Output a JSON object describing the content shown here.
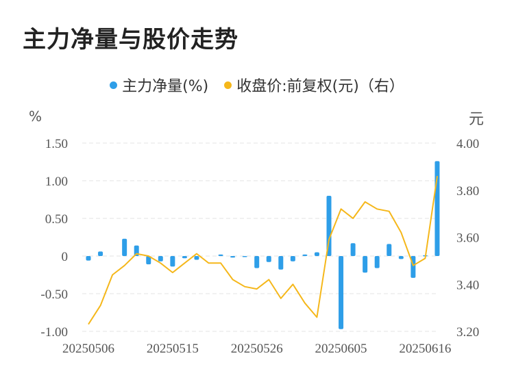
{
  "title": "主力净量与股价走势",
  "legend": [
    {
      "label": "主力净量(%)",
      "color": "#2e9ee8"
    },
    {
      "label": "收盘价:前复权(元)（右）",
      "color": "#f5b71a"
    }
  ],
  "unit_left": "%",
  "unit_right": "元",
  "chart_data": {
    "type": "bar",
    "title": "主力净量与股价走势",
    "y_left_ticks": [
      "1.50",
      "1.00",
      "0.50",
      "0",
      "-0.50",
      "-1.00"
    ],
    "y_left_lim": [
      -1.0,
      1.5
    ],
    "y_right_ticks": [
      "4.00",
      "3.80",
      "3.60",
      "3.40",
      "3.20"
    ],
    "y_right_lim": [
      3.2,
      4.0
    ],
    "x_tick_labels": [
      "20250506",
      "20250515",
      "20250526",
      "20250605",
      "20250616"
    ],
    "x_tick_index": [
      0,
      7,
      14,
      21,
      28
    ],
    "grid": true,
    "series": [
      {
        "name": "主力净量(%)",
        "type": "bar",
        "axis": "left",
        "color": "#2e9ee8",
        "values": [
          -0.06,
          0.06,
          0.0,
          0.23,
          0.14,
          -0.11,
          -0.07,
          -0.14,
          -0.03,
          -0.05,
          0.0,
          0.02,
          -0.02,
          -0.01,
          -0.16,
          -0.08,
          -0.18,
          -0.07,
          0.02,
          0.05,
          0.8,
          -0.97,
          0.17,
          -0.22,
          -0.16,
          0.16,
          -0.04,
          -0.29,
          0.01,
          1.26
        ]
      },
      {
        "name": "收盘价:前复权(元)（右）",
        "type": "line",
        "axis": "right",
        "color": "#f5b71a",
        "values": [
          3.23,
          3.31,
          3.44,
          3.48,
          3.53,
          3.52,
          3.49,
          3.45,
          3.49,
          3.53,
          3.49,
          3.49,
          3.42,
          3.39,
          3.38,
          3.42,
          3.34,
          3.4,
          3.32,
          3.26,
          3.59,
          3.72,
          3.68,
          3.75,
          3.72,
          3.71,
          3.62,
          3.48,
          3.51,
          3.86
        ]
      }
    ]
  }
}
